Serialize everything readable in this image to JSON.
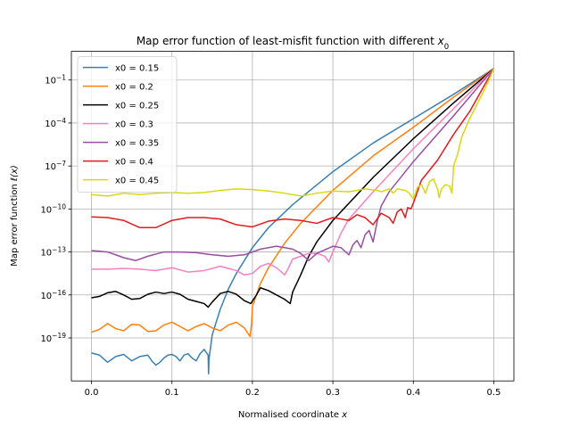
{
  "chart_data": {
    "type": "line",
    "title": "Map error function of least-misfit function with different x0",
    "title_main": "Map error function of least-misfit function with different ",
    "title_sym": "x",
    "title_sub": "0",
    "xlabel": "Normalised coordinate x",
    "xlabel_main": "Normalised coordinate ",
    "xlabel_sym": "x",
    "ylabel": "Map error function ℓ(x)",
    "ylabel_main": "Map error function ",
    "ylabel_sym": "ℓ(x)",
    "xscale": "linear",
    "yscale": "log",
    "xlim": [
      -0.025,
      0.525
    ],
    "ylim": [
      1e-22,
      10
    ],
    "grid": true,
    "legend_position": "top-left",
    "x_ticks": [
      {
        "value": 0.0,
        "label": "0.0"
      },
      {
        "value": 0.1,
        "label": "0.1"
      },
      {
        "value": 0.2,
        "label": "0.2"
      },
      {
        "value": 0.3,
        "label": "0.3"
      },
      {
        "value": 0.4,
        "label": "0.4"
      },
      {
        "value": 0.5,
        "label": "0.5"
      }
    ],
    "y_ticks": [
      {
        "exp": -1,
        "base": "10",
        "sup": "−1"
      },
      {
        "exp": -4,
        "base": "10",
        "sup": "−4"
      },
      {
        "exp": -7,
        "base": "10",
        "sup": "−7"
      },
      {
        "exp": -10,
        "base": "10",
        "sup": "−10"
      },
      {
        "exp": -13,
        "base": "10",
        "sup": "−13"
      },
      {
        "exp": -16,
        "base": "10",
        "sup": "−16"
      },
      {
        "exp": -19,
        "base": "10",
        "sup": "−19"
      }
    ],
    "series": [
      {
        "name": "x0 = 0.15",
        "color": "#3a7fb4",
        "points": [
          [
            0,
            -20.05
          ],
          [
            0.01,
            -20.2
          ],
          [
            0.02,
            -20.7
          ],
          [
            0.03,
            -20.3
          ],
          [
            0.04,
            -20.15
          ],
          [
            0.05,
            -20.6
          ],
          [
            0.06,
            -20.3
          ],
          [
            0.07,
            -20.2
          ],
          [
            0.075,
            -20.6
          ],
          [
            0.08,
            -20.9
          ],
          [
            0.085,
            -20.7
          ],
          [
            0.09,
            -20.4
          ],
          [
            0.095,
            -20.2
          ],
          [
            0.1,
            -20.15
          ],
          [
            0.105,
            -20.3
          ],
          [
            0.11,
            -20.6
          ],
          [
            0.115,
            -20.2
          ],
          [
            0.12,
            -20.1
          ],
          [
            0.125,
            -20.4
          ],
          [
            0.13,
            -20.6
          ],
          [
            0.135,
            -20.1
          ],
          [
            0.14,
            -19.8
          ],
          [
            0.145,
            -20.2
          ],
          [
            0.1455,
            -21.5
          ],
          [
            0.146,
            -20.5
          ],
          [
            0.15,
            -18.8
          ],
          [
            0.16,
            -17.0
          ],
          [
            0.17,
            -15.6
          ],
          [
            0.18,
            -14.5
          ],
          [
            0.2,
            -12.7
          ],
          [
            0.22,
            -11.3
          ],
          [
            0.25,
            -9.7
          ],
          [
            0.3,
            -7.4
          ],
          [
            0.35,
            -5.4
          ],
          [
            0.4,
            -3.7
          ],
          [
            0.45,
            -2.0
          ],
          [
            0.5,
            -0.2
          ]
        ]
      },
      {
        "name": "x0 = 0.2",
        "color": "#ff7f0e",
        "points": [
          [
            0,
            -18.6
          ],
          [
            0.01,
            -18.4
          ],
          [
            0.02,
            -18.0
          ],
          [
            0.03,
            -18.35
          ],
          [
            0.04,
            -18.5
          ],
          [
            0.05,
            -18.05
          ],
          [
            0.06,
            -18.1
          ],
          [
            0.07,
            -18.55
          ],
          [
            0.08,
            -18.5
          ],
          [
            0.09,
            -18.1
          ],
          [
            0.1,
            -17.9
          ],
          [
            0.11,
            -18.2
          ],
          [
            0.12,
            -18.5
          ],
          [
            0.13,
            -18.2
          ],
          [
            0.14,
            -18.0
          ],
          [
            0.15,
            -18.3
          ],
          [
            0.16,
            -18.5
          ],
          [
            0.17,
            -18.1
          ],
          [
            0.18,
            -17.9
          ],
          [
            0.19,
            -18.3
          ],
          [
            0.197,
            -18.9
          ],
          [
            0.199,
            -18.0
          ],
          [
            0.2,
            -16.8
          ],
          [
            0.21,
            -15.2
          ],
          [
            0.22,
            -14.1
          ],
          [
            0.24,
            -12.4
          ],
          [
            0.26,
            -11.0
          ],
          [
            0.3,
            -8.7
          ],
          [
            0.35,
            -6.3
          ],
          [
            0.4,
            -4.3
          ],
          [
            0.45,
            -2.2
          ],
          [
            0.5,
            -0.2
          ]
        ]
      },
      {
        "name": "x0 = 0.25",
        "color": "#000000",
        "points": [
          [
            0,
            -16.2
          ],
          [
            0.01,
            -16.1
          ],
          [
            0.02,
            -15.85
          ],
          [
            0.03,
            -15.75
          ],
          [
            0.04,
            -16.0
          ],
          [
            0.05,
            -16.3
          ],
          [
            0.06,
            -16.25
          ],
          [
            0.07,
            -15.95
          ],
          [
            0.08,
            -15.8
          ],
          [
            0.09,
            -15.9
          ],
          [
            0.1,
            -15.8
          ],
          [
            0.11,
            -15.95
          ],
          [
            0.12,
            -16.3
          ],
          [
            0.13,
            -16.45
          ],
          [
            0.14,
            -16.6
          ],
          [
            0.145,
            -16.85
          ],
          [
            0.15,
            -16.5
          ],
          [
            0.16,
            -15.9
          ],
          [
            0.17,
            -15.75
          ],
          [
            0.18,
            -15.95
          ],
          [
            0.19,
            -16.4
          ],
          [
            0.198,
            -16.6
          ],
          [
            0.205,
            -16.0
          ],
          [
            0.21,
            -15.5
          ],
          [
            0.22,
            -15.7
          ],
          [
            0.23,
            -16.0
          ],
          [
            0.24,
            -16.3
          ],
          [
            0.247,
            -16.6
          ],
          [
            0.25,
            -15.8
          ],
          [
            0.26,
            -14.6
          ],
          [
            0.27,
            -13.3
          ],
          [
            0.28,
            -12.3
          ],
          [
            0.3,
            -10.8
          ],
          [
            0.35,
            -7.8
          ],
          [
            0.4,
            -5.1
          ],
          [
            0.45,
            -2.6
          ],
          [
            0.5,
            -0.2
          ]
        ]
      },
      {
        "name": "x0 = 0.3",
        "color": "#f781bf",
        "points": [
          [
            0,
            -14.2
          ],
          [
            0.02,
            -14.2
          ],
          [
            0.04,
            -14.15
          ],
          [
            0.06,
            -14.2
          ],
          [
            0.08,
            -14.3
          ],
          [
            0.1,
            -14.1
          ],
          [
            0.12,
            -14.4
          ],
          [
            0.14,
            -14.3
          ],
          [
            0.16,
            -14.0
          ],
          [
            0.18,
            -14.3
          ],
          [
            0.19,
            -14.6
          ],
          [
            0.2,
            -14.5
          ],
          [
            0.21,
            -14.0
          ],
          [
            0.22,
            -13.8
          ],
          [
            0.23,
            -14.1
          ],
          [
            0.24,
            -14.6
          ],
          [
            0.245,
            -14.1
          ],
          [
            0.25,
            -13.5
          ],
          [
            0.26,
            -13.3
          ],
          [
            0.27,
            -13.1
          ],
          [
            0.28,
            -13.1
          ],
          [
            0.29,
            -13.3
          ],
          [
            0.295,
            -13.7
          ],
          [
            0.3,
            -13.0
          ],
          [
            0.31,
            -11.7
          ],
          [
            0.32,
            -10.7
          ],
          [
            0.35,
            -8.8
          ],
          [
            0.4,
            -5.8
          ],
          [
            0.45,
            -3.0
          ],
          [
            0.5,
            -0.2
          ]
        ]
      },
      {
        "name": "x0 = 0.35",
        "color": "#984ea3",
        "points": [
          [
            0,
            -12.9
          ],
          [
            0.02,
            -13.0
          ],
          [
            0.04,
            -13.4
          ],
          [
            0.055,
            -13.6
          ],
          [
            0.07,
            -13.3
          ],
          [
            0.09,
            -13.0
          ],
          [
            0.11,
            -13.0
          ],
          [
            0.13,
            -13.05
          ],
          [
            0.15,
            -13.2
          ],
          [
            0.17,
            -13.3
          ],
          [
            0.19,
            -13.2
          ],
          [
            0.21,
            -12.8
          ],
          [
            0.23,
            -12.6
          ],
          [
            0.25,
            -12.8
          ],
          [
            0.26,
            -13.1
          ],
          [
            0.27,
            -13.6
          ],
          [
            0.28,
            -13.1
          ],
          [
            0.3,
            -12.6
          ],
          [
            0.31,
            -12.7
          ],
          [
            0.32,
            -13.2
          ],
          [
            0.325,
            -12.5
          ],
          [
            0.33,
            -12.2
          ],
          [
            0.335,
            -12.7
          ],
          [
            0.34,
            -11.8
          ],
          [
            0.345,
            -11.5
          ],
          [
            0.35,
            -12.3
          ],
          [
            0.355,
            -10.9
          ],
          [
            0.36,
            -9.8
          ],
          [
            0.37,
            -8.8
          ],
          [
            0.4,
            -6.7
          ],
          [
            0.45,
            -3.5
          ],
          [
            0.5,
            -0.2
          ]
        ]
      },
      {
        "name": "x0 = 0.4",
        "color": "#e41a1c",
        "points": [
          [
            0,
            -10.55
          ],
          [
            0.02,
            -10.6
          ],
          [
            0.04,
            -10.8
          ],
          [
            0.06,
            -11.3
          ],
          [
            0.08,
            -11.3
          ],
          [
            0.1,
            -10.8
          ],
          [
            0.12,
            -10.6
          ],
          [
            0.14,
            -10.6
          ],
          [
            0.16,
            -10.7
          ],
          [
            0.18,
            -11.1
          ],
          [
            0.2,
            -11.25
          ],
          [
            0.22,
            -10.85
          ],
          [
            0.24,
            -10.7
          ],
          [
            0.26,
            -10.8
          ],
          [
            0.28,
            -11.0
          ],
          [
            0.3,
            -10.6
          ],
          [
            0.32,
            -10.8
          ],
          [
            0.33,
            -10.4
          ],
          [
            0.34,
            -10.6
          ],
          [
            0.35,
            -11.1
          ],
          [
            0.36,
            -10.3
          ],
          [
            0.37,
            -10.6
          ],
          [
            0.375,
            -11.0
          ],
          [
            0.38,
            -10.2
          ],
          [
            0.385,
            -10.0
          ],
          [
            0.39,
            -10.6
          ],
          [
            0.393,
            -9.9
          ],
          [
            0.397,
            -10.0
          ],
          [
            0.4,
            -9.6
          ],
          [
            0.41,
            -8.0
          ],
          [
            0.43,
            -6.6
          ],
          [
            0.45,
            -4.8
          ],
          [
            0.47,
            -3.2
          ],
          [
            0.5,
            -0.2
          ]
        ]
      },
      {
        "name": "x0 = 0.45",
        "color": "#d8d80e",
        "points": [
          [
            0,
            -9.0
          ],
          [
            0.02,
            -9.1
          ],
          [
            0.04,
            -8.9
          ],
          [
            0.06,
            -9.0
          ],
          [
            0.08,
            -8.9
          ],
          [
            0.1,
            -8.85
          ],
          [
            0.12,
            -8.9
          ],
          [
            0.14,
            -8.85
          ],
          [
            0.16,
            -8.7
          ],
          [
            0.18,
            -8.6
          ],
          [
            0.2,
            -8.65
          ],
          [
            0.22,
            -8.75
          ],
          [
            0.24,
            -8.9
          ],
          [
            0.26,
            -9.1
          ],
          [
            0.28,
            -8.9
          ],
          [
            0.3,
            -8.75
          ],
          [
            0.32,
            -8.8
          ],
          [
            0.34,
            -8.6
          ],
          [
            0.355,
            -8.7
          ],
          [
            0.36,
            -8.8
          ],
          [
            0.37,
            -8.6
          ],
          [
            0.375,
            -8.9
          ],
          [
            0.38,
            -8.6
          ],
          [
            0.39,
            -8.7
          ],
          [
            0.395,
            -8.9
          ],
          [
            0.4,
            -9.3
          ],
          [
            0.405,
            -8.5
          ],
          [
            0.41,
            -8.3
          ],
          [
            0.415,
            -8.9
          ],
          [
            0.42,
            -8.1
          ],
          [
            0.425,
            -7.9
          ],
          [
            0.43,
            -8.6
          ],
          [
            0.432,
            -9.2
          ],
          [
            0.435,
            -8.6
          ],
          [
            0.44,
            -8.3
          ],
          [
            0.445,
            -8.4
          ],
          [
            0.448,
            -8.9
          ],
          [
            0.45,
            -7.0
          ],
          [
            0.455,
            -6.2
          ],
          [
            0.46,
            -5.0
          ],
          [
            0.47,
            -3.7
          ],
          [
            0.48,
            -2.6
          ],
          [
            0.49,
            -1.5
          ],
          [
            0.5,
            -0.2
          ]
        ]
      }
    ]
  }
}
